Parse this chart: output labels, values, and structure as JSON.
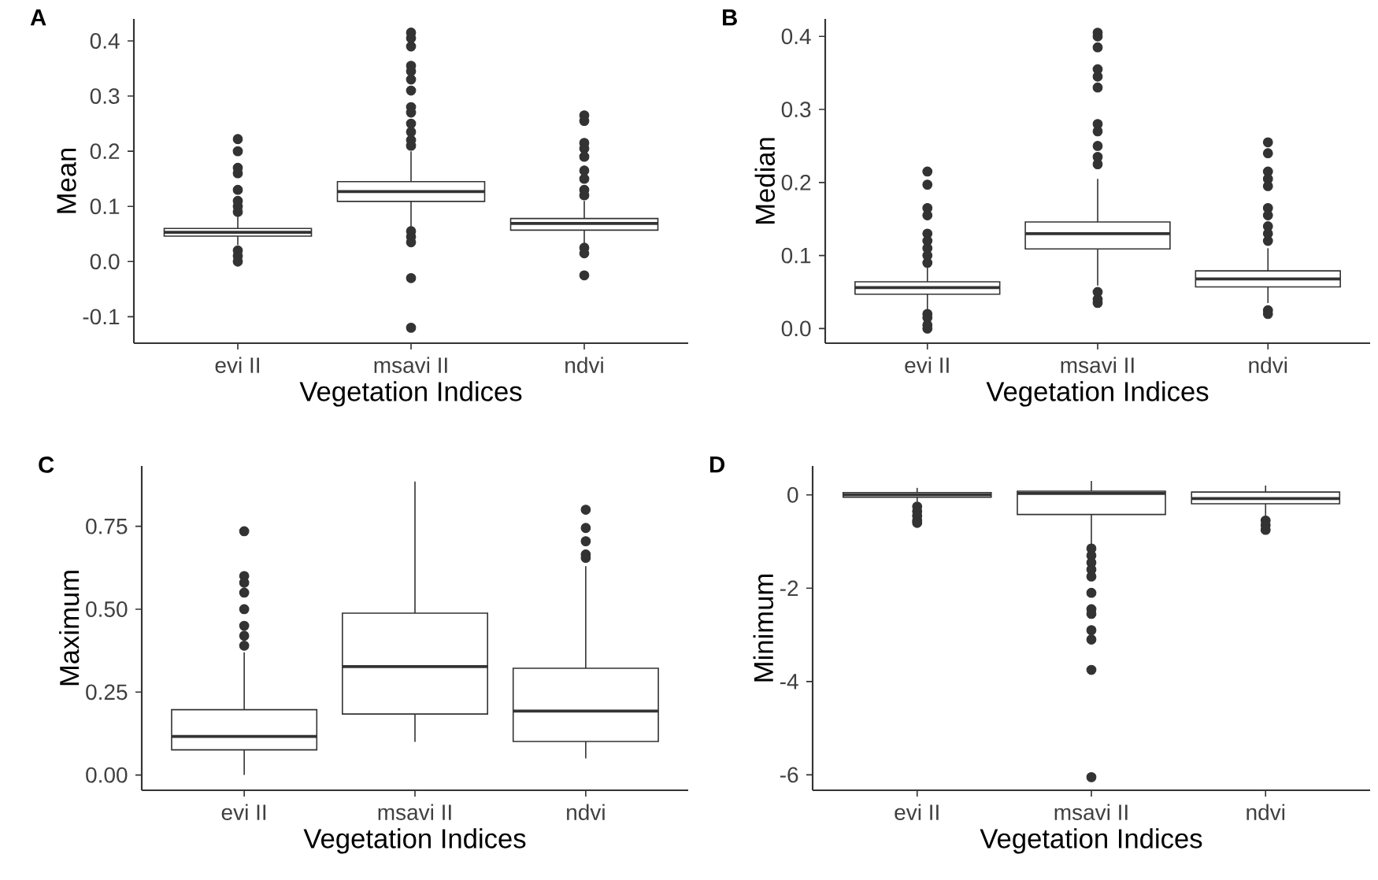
{
  "chart_data": [
    {
      "type": "box",
      "title": "A",
      "xlabel": "Vegetation Indices",
      "ylabel": "Mean",
      "categories": [
        "evi II",
        "msavi II",
        "ndvi"
      ],
      "ylim": [
        -0.148,
        0.44
      ],
      "yticks": [
        -0.1,
        {
          "value": 0,
          "label": "0.0"
        },
        0.1,
        0.2,
        0.3,
        0.4
      ],
      "marker": "circle",
      "boxes": [
        {
          "low": 0.03,
          "q1": 0.046,
          "median": 0.053,
          "q3": 0.06,
          "high": 0.082,
          "outliers": [
            0.222,
            0.2,
            0.17,
            0.16,
            0.13,
            0.11,
            0.1,
            0.09,
            0.02,
            0.01,
            0.0
          ]
        },
        {
          "low": 0.06,
          "q1": 0.109,
          "median": 0.127,
          "q3": 0.145,
          "high": 0.2,
          "outliers": [
            0.415,
            0.405,
            0.39,
            0.355,
            0.345,
            0.33,
            0.31,
            0.28,
            0.27,
            0.25,
            0.235,
            0.22,
            0.21,
            0.055,
            0.045,
            0.035,
            -0.03,
            -0.12
          ]
        },
        {
          "low": 0.03,
          "q1": 0.057,
          "median": 0.069,
          "q3": 0.078,
          "high": 0.11,
          "outliers": [
            0.265,
            0.255,
            0.215,
            0.205,
            0.19,
            0.165,
            0.15,
            0.13,
            0.12,
            0.025,
            0.015,
            -0.025
          ]
        }
      ]
    },
    {
      "type": "box",
      "title": "B",
      "xlabel": "Vegetation Indices",
      "ylabel": "Median",
      "categories": [
        "evi II",
        "msavi II",
        "ndvi"
      ],
      "ylim": [
        -0.02,
        0.424
      ],
      "yticks": [
        {
          "value": 0,
          "label": "0.0"
        },
        0.1,
        0.2,
        0.3,
        0.4
      ],
      "marker": "circle",
      "boxes": [
        {
          "low": 0.025,
          "q1": 0.047,
          "median": 0.056,
          "q3": 0.064,
          "high": 0.085,
          "outliers": [
            0.215,
            0.197,
            0.165,
            0.155,
            0.13,
            0.12,
            0.11,
            0.1,
            0.09,
            0.02,
            0.015,
            0.005,
            0.0
          ]
        },
        {
          "low": 0.059,
          "q1": 0.109,
          "median": 0.13,
          "q3": 0.146,
          "high": 0.205,
          "outliers": [
            0.405,
            0.4,
            0.385,
            0.355,
            0.345,
            0.33,
            0.28,
            0.27,
            0.25,
            0.235,
            0.225,
            0.05,
            0.04,
            0.035
          ]
        },
        {
          "low": 0.035,
          "q1": 0.057,
          "median": 0.068,
          "q3": 0.079,
          "high": 0.11,
          "outliers": [
            0.255,
            0.24,
            0.215,
            0.205,
            0.195,
            0.165,
            0.155,
            0.14,
            0.13,
            0.12,
            0.025,
            0.02
          ]
        }
      ]
    },
    {
      "type": "box",
      "title": "C",
      "xlabel": "Vegetation Indices",
      "ylabel": "Maximum",
      "categories": [
        "evi II",
        "msavi II",
        "ndvi"
      ],
      "ylim": [
        -0.046,
        0.932
      ],
      "yticks": [
        {
          "value": 0,
          "label": "0.00"
        },
        {
          "value": 0.25,
          "label": "0.25"
        },
        {
          "value": 0.5,
          "label": "0.50"
        },
        {
          "value": 0.75,
          "label": "0.75"
        }
      ],
      "marker": "circle",
      "boxes": [
        {
          "low": 0.0,
          "q1": 0.076,
          "median": 0.116,
          "q3": 0.197,
          "high": 0.37,
          "outliers": [
            0.735,
            0.6,
            0.58,
            0.55,
            0.5,
            0.45,
            0.42,
            0.39
          ]
        },
        {
          "low": 0.1,
          "q1": 0.184,
          "median": 0.327,
          "q3": 0.488,
          "high": 0.885
        },
        {
          "low": 0.05,
          "q1": 0.101,
          "median": 0.193,
          "q3": 0.322,
          "high": 0.63,
          "outliers": [
            0.8,
            0.745,
            0.705,
            0.665,
            0.655
          ]
        }
      ]
    },
    {
      "type": "box",
      "title": "D",
      "xlabel": "Vegetation Indices",
      "ylabel": "Minimum",
      "categories": [
        "evi II",
        "msavi II",
        "ndvi"
      ],
      "ylim": [
        -6.33,
        0.62
      ],
      "yticks": [
        -6,
        -4,
        -2,
        0
      ],
      "marker": "circle",
      "boxes": [
        {
          "low": -0.15,
          "q1": -0.05,
          "median": 0,
          "q3": 0.05,
          "high": 0.15,
          "outliers": [
            -0.25,
            -0.35,
            -0.45,
            -0.55,
            -0.6
          ]
        },
        {
          "low": -1.09,
          "q1": -0.42,
          "median": 0.03,
          "q3": 0.08,
          "high": 0.3,
          "outliers": [
            -1.15,
            -1.3,
            -1.45,
            -1.6,
            -1.75,
            -2.1,
            -2.45,
            -2.55,
            -2.9,
            -3.1,
            -3.75,
            -6.05
          ]
        },
        {
          "low": -0.45,
          "q1": -0.19,
          "median": -0.08,
          "q3": 0.06,
          "high": 0.2,
          "outliers": [
            -0.55,
            -0.65,
            -0.75
          ]
        }
      ]
    }
  ]
}
